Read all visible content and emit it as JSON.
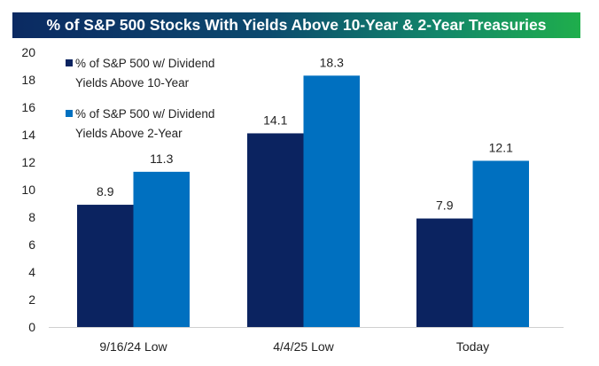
{
  "chart_data": {
    "type": "bar",
    "title": "% of S&P 500 Stocks With Yields Above 10-Year & 2-Year Treasuries",
    "categories": [
      "9/16/24 Low",
      "4/4/25 Low",
      "Today"
    ],
    "series": [
      {
        "name": "% of S&P 500 w/ Dividend Yields Above 10-Year",
        "name_lines": [
          "% of S&P 500 w/ Dividend",
          "Yields Above 10-Year"
        ],
        "values": [
          8.9,
          14.1,
          7.9
        ],
        "color": "#0b2360"
      },
      {
        "name": "% of S&P 500 w/ Dividend Yields Above 2-Year",
        "name_lines": [
          "% of S&P 500 w/ Dividend",
          "Yields Above 2-Year"
        ],
        "values": [
          11.3,
          18.3,
          12.1
        ],
        "color": "#0070c0"
      }
    ],
    "data_labels": [
      [
        "8.9",
        "14.1",
        "7.9"
      ],
      [
        "11.3",
        "18.3",
        "12.1"
      ]
    ],
    "yticks": [
      "0",
      "2",
      "4",
      "6",
      "8",
      "10",
      "12",
      "14",
      "16",
      "18",
      "20"
    ],
    "ylim": [
      0,
      20
    ],
    "xlabel": "",
    "ylabel": "",
    "grid": false,
    "legend_position": "top-left"
  }
}
